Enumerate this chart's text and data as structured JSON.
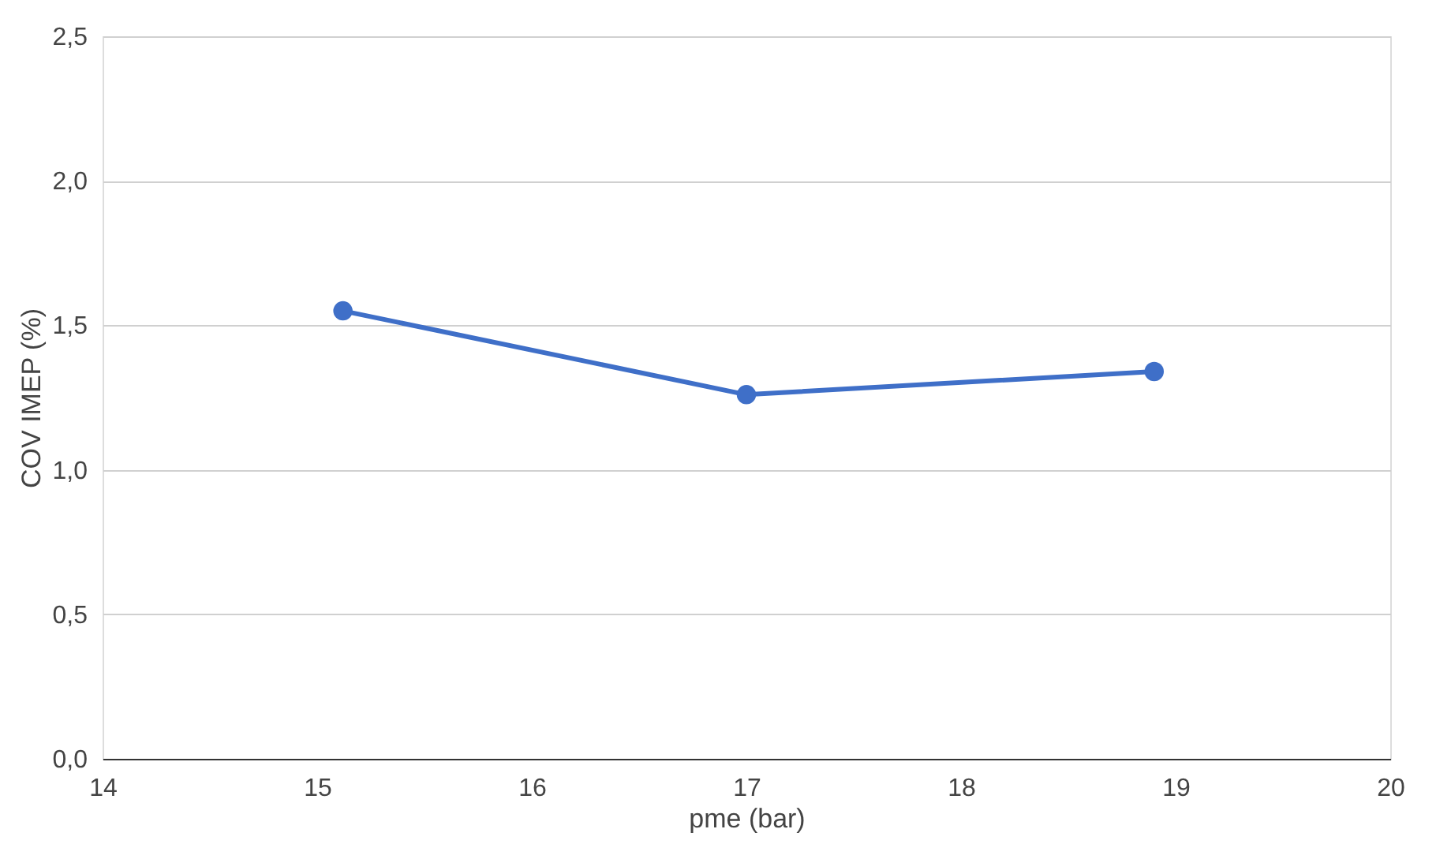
{
  "chart_data": {
    "type": "line",
    "xlabel": "pme (bar)",
    "ylabel": "COV IMEP (%)",
    "x": [
      15.12,
      17.0,
      18.9
    ],
    "series": [
      {
        "color": "#3f6fc8",
        "values": [
          1.55,
          1.26,
          1.34
        ]
      }
    ],
    "xlim": [
      14,
      20
    ],
    "xticks": [
      14,
      15,
      16,
      17,
      18,
      19,
      20
    ],
    "ylim": [
      0,
      2.5
    ],
    "yticks": [
      {
        "value": 0,
        "label": "0,0"
      },
      {
        "value": 0.5,
        "label": "0,5"
      },
      {
        "value": 1.0,
        "label": "1,0"
      },
      {
        "value": 1.5,
        "label": "1,5"
      },
      {
        "value": 2.0,
        "label": "2,0"
      },
      {
        "value": 2.5,
        "label": "2,5"
      }
    ],
    "grid": "y",
    "marker": "circle",
    "line_style": "solid"
  }
}
